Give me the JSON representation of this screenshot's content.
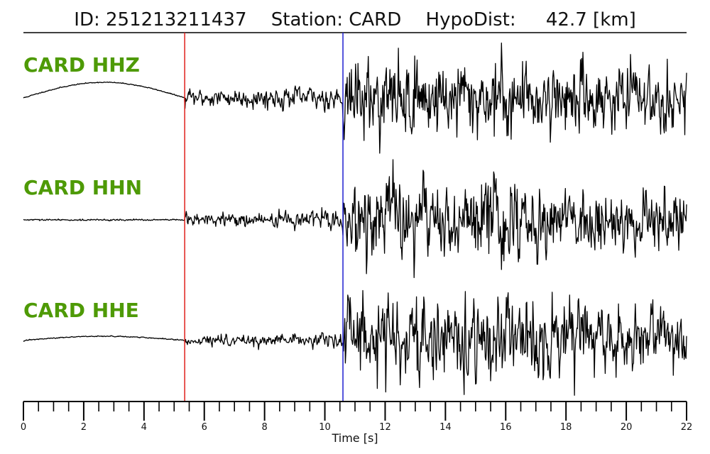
{
  "header": {
    "id_text": "ID: 251213211437",
    "station_text": "Station: CARD",
    "hypodist_text": "HypoDist:",
    "hypodist_value": "42.7 [km]"
  },
  "colors": {
    "label": "#4e9a06",
    "trace": "#000000",
    "p_pick": "#e0201b",
    "s_pick": "#1f1fd0"
  },
  "chart_data": {
    "type": "line",
    "title": "ID: 251213211437   Station: CARD   HypoDist:    42.7 [km]",
    "xlabel": "Time [s]",
    "ylabel": "",
    "xlim": [
      0,
      22
    ],
    "x_major_ticks": [
      0,
      2,
      4,
      6,
      8,
      10,
      12,
      14,
      16,
      18,
      20,
      22
    ],
    "x_minor_tick_step": 0.5,
    "grid": false,
    "picks": [
      {
        "name": "P",
        "time": 5.35,
        "color": "#e0201b"
      },
      {
        "name": "S",
        "time": 10.6,
        "color": "#1f1fd0"
      }
    ],
    "series": [
      {
        "name": "CARD HHZ",
        "note_envelope": "amplitude relative to max",
        "segments": [
          {
            "t": [
              0,
              5.35
            ],
            "shape": "long-period swell",
            "amp": 0.11
          },
          {
            "t": [
              5.35,
              10.6
            ],
            "shape": "P coda",
            "amp": 0.3
          },
          {
            "t": [
              10.6,
              22
            ],
            "shape": "S coda",
            "amp": 1.0
          }
        ]
      },
      {
        "name": "CARD HHN",
        "segments": [
          {
            "t": [
              0,
              5.35
            ],
            "shape": "flat",
            "amp": 0.02
          },
          {
            "t": [
              5.35,
              10.6
            ],
            "shape": "P coda",
            "amp": 0.2
          },
          {
            "t": [
              10.6,
              22
            ],
            "shape": "S coda",
            "amp": 1.0
          }
        ]
      },
      {
        "name": "CARD HHE",
        "segments": [
          {
            "t": [
              0,
              5.35
            ],
            "shape": "small swell",
            "amp": 0.04
          },
          {
            "t": [
              5.35,
              10.6
            ],
            "shape": "P coda",
            "amp": 0.15
          },
          {
            "t": [
              10.6,
              22
            ],
            "shape": "S coda",
            "amp": 1.0
          }
        ]
      }
    ]
  }
}
